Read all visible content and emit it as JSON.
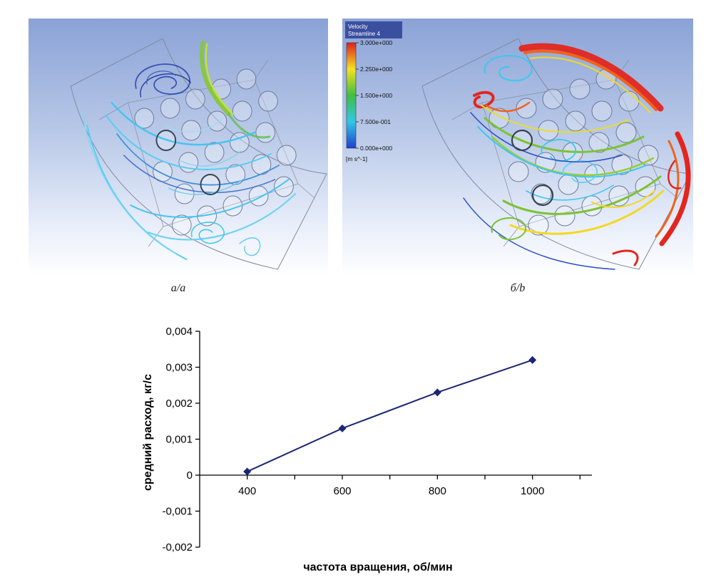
{
  "figure": {
    "panels": {
      "a": {
        "label": "а/a"
      },
      "b": {
        "label": "б/b"
      }
    },
    "legend": {
      "title_line1": "Velocity",
      "title_line2": "Streamline 4",
      "ticks": [
        "3.000e+000",
        "2.250e+000",
        "1.500e+000",
        "7.500e-001",
        "0.000e+000"
      ],
      "units": "[m s^-1]",
      "colors": {
        "max": "#e01f1f",
        "mid": "#3fbf3f",
        "min": "#1f3fd0"
      }
    }
  },
  "chart_data": {
    "type": "line",
    "x": [
      400,
      600,
      800,
      1000
    ],
    "y": [
      0.0001,
      0.0013,
      0.0023,
      0.0032
    ],
    "xlabel": "частота вращения, об/мин",
    "ylabel": "средний расход, кг/с",
    "xlim": [
      300,
      1125
    ],
    "ylim": [
      -0.002,
      0.004
    ],
    "xticks": {
      "labeled": [
        400,
        600,
        800,
        1000
      ],
      "labels": [
        "400",
        "600",
        "800",
        "1000"
      ],
      "minor_step": 100
    },
    "yticks": {
      "values": [
        0.004,
        0.003,
        0.002,
        0.001,
        0,
        -0.001,
        -0.002
      ],
      "labels": [
        "0,004",
        "0,003",
        "0,002",
        "0,001",
        "0",
        "-0,001",
        "-0,002"
      ]
    },
    "marker": "diamond",
    "line_color": "#1c2674",
    "grid": false,
    "legend_position": "none"
  }
}
